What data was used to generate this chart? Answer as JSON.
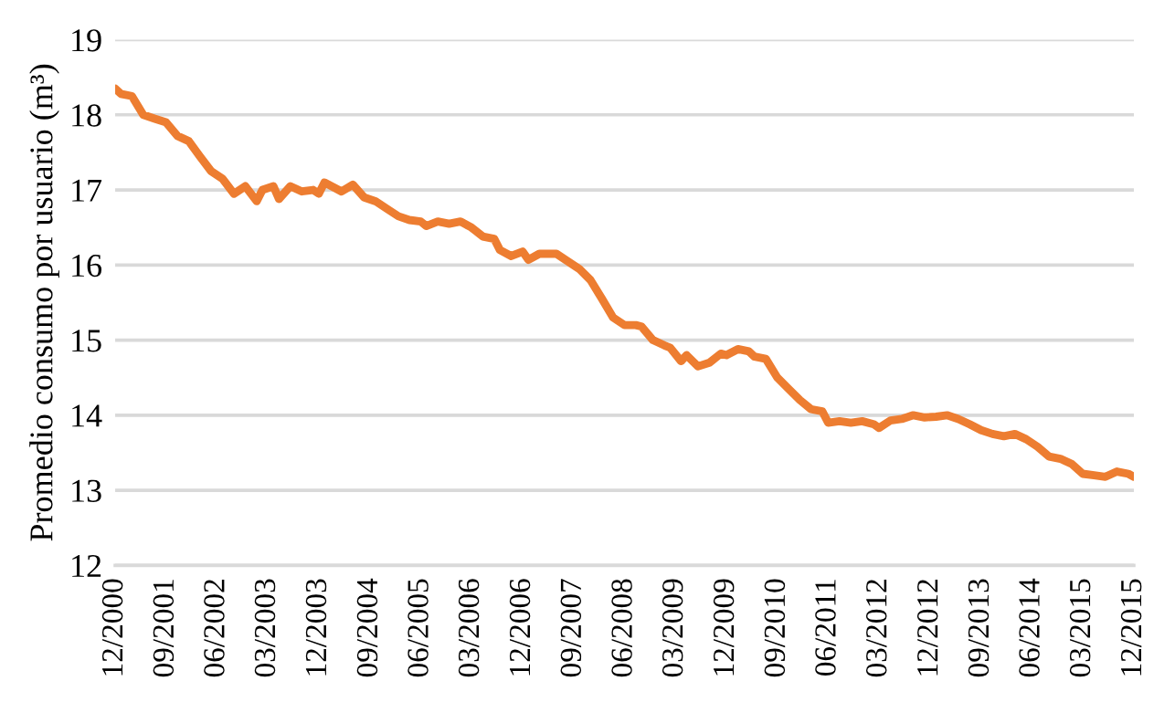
{
  "chart_data": {
    "type": "line",
    "ylabel": "Promedio consumo por usuario (m³)",
    "x": [
      "2000-12",
      "2001-01",
      "2001-03",
      "2001-05",
      "2001-07",
      "2001-09",
      "2001-11",
      "2002-01",
      "2002-03",
      "2002-05",
      "2002-07",
      "2002-09",
      "2002-11",
      "2003-01",
      "2003-02",
      "2003-04",
      "2003-05",
      "2003-07",
      "2003-09",
      "2003-11",
      "2003-12",
      "2004-01",
      "2004-04",
      "2004-06",
      "2004-08",
      "2004-10",
      "2004-12",
      "2005-02",
      "2005-04",
      "2005-06",
      "2005-07",
      "2005-09",
      "2005-11",
      "2006-01",
      "2006-03",
      "2006-05",
      "2006-07",
      "2006-08",
      "2006-10",
      "2006-12",
      "2007-01",
      "2007-03",
      "2007-06",
      "2007-08",
      "2007-10",
      "2007-12",
      "2008-02",
      "2008-04",
      "2008-06",
      "2008-08",
      "2008-09",
      "2008-11",
      "2009-01",
      "2009-02",
      "2009-04",
      "2009-05",
      "2009-07",
      "2009-09",
      "2009-11",
      "2009-12",
      "2010-02",
      "2010-04",
      "2010-05",
      "2010-07",
      "2010-09",
      "2010-11",
      "2011-01",
      "2011-03",
      "2011-05",
      "2011-06",
      "2011-08",
      "2011-10",
      "2011-12",
      "2012-02",
      "2012-03",
      "2012-05",
      "2012-07",
      "2012-09",
      "2012-11",
      "2013-01",
      "2013-03",
      "2013-05",
      "2013-07",
      "2013-09",
      "2013-11",
      "2014-01",
      "2014-03",
      "2014-05",
      "2014-07",
      "2014-09",
      "2014-11",
      "2015-01",
      "2015-03",
      "2015-05",
      "2015-07",
      "2015-09",
      "2015-11",
      "2015-12"
    ],
    "series": [
      {
        "color": "#ed7d31",
        "values": [
          18.35,
          18.28,
          18.25,
          18.0,
          17.95,
          17.9,
          17.72,
          17.65,
          17.45,
          17.25,
          17.15,
          16.95,
          17.05,
          16.85,
          17.0,
          17.05,
          16.88,
          17.05,
          16.98,
          17.0,
          16.95,
          17.1,
          16.98,
          17.07,
          16.9,
          16.85,
          16.75,
          16.65,
          16.6,
          16.58,
          16.52,
          16.58,
          16.55,
          16.58,
          16.5,
          16.38,
          16.35,
          16.2,
          16.12,
          16.18,
          16.07,
          16.15,
          16.15,
          16.05,
          15.95,
          15.8,
          15.55,
          15.3,
          15.2,
          15.2,
          15.18,
          15.0,
          14.93,
          14.9,
          14.72,
          14.8,
          14.65,
          14.7,
          14.82,
          14.8,
          14.88,
          14.85,
          14.78,
          14.75,
          14.5,
          14.35,
          14.2,
          14.08,
          14.05,
          13.9,
          13.92,
          13.9,
          13.92,
          13.88,
          13.83,
          13.93,
          13.95,
          14.0,
          13.97,
          13.98,
          14.0,
          13.95,
          13.88,
          13.8,
          13.75,
          13.72,
          13.75,
          13.68,
          13.58,
          13.45,
          13.42,
          13.35,
          13.22,
          13.2,
          13.18,
          13.25,
          13.22,
          13.18
        ]
      }
    ],
    "xlim": [
      "2000-12",
      "2015-12"
    ],
    "xticks": [
      {
        "value": "2000-12",
        "label": "12/2000"
      },
      {
        "value": "2001-09",
        "label": "09/2001"
      },
      {
        "value": "2002-06",
        "label": "06/2002"
      },
      {
        "value": "2003-03",
        "label": "03/2003"
      },
      {
        "value": "2003-12",
        "label": "12/2003"
      },
      {
        "value": "2004-09",
        "label": "09/2004"
      },
      {
        "value": "2005-06",
        "label": "06/2005"
      },
      {
        "value": "2006-03",
        "label": "03/2006"
      },
      {
        "value": "2006-12",
        "label": "12/2006"
      },
      {
        "value": "2007-09",
        "label": "09/2007"
      },
      {
        "value": "2008-06",
        "label": "06/2008"
      },
      {
        "value": "2009-03",
        "label": "03/2009"
      },
      {
        "value": "2009-12",
        "label": "12/2009"
      },
      {
        "value": "2010-09",
        "label": "09/2010"
      },
      {
        "value": "2011-06",
        "label": "06/2011"
      },
      {
        "value": "2012-03",
        "label": "03/2012"
      },
      {
        "value": "2012-12",
        "label": "12/2012"
      },
      {
        "value": "2013-09",
        "label": "09/2013"
      },
      {
        "value": "2014-06",
        "label": "06/2014"
      },
      {
        "value": "2015-03",
        "label": "03/2015"
      },
      {
        "value": "2015-12",
        "label": "12/2015"
      }
    ],
    "ylim": [
      12,
      19
    ],
    "yticks": [
      12,
      13,
      14,
      15,
      16,
      17,
      18,
      19
    ],
    "grid": "y",
    "marker": "none",
    "line_style": "solid"
  }
}
